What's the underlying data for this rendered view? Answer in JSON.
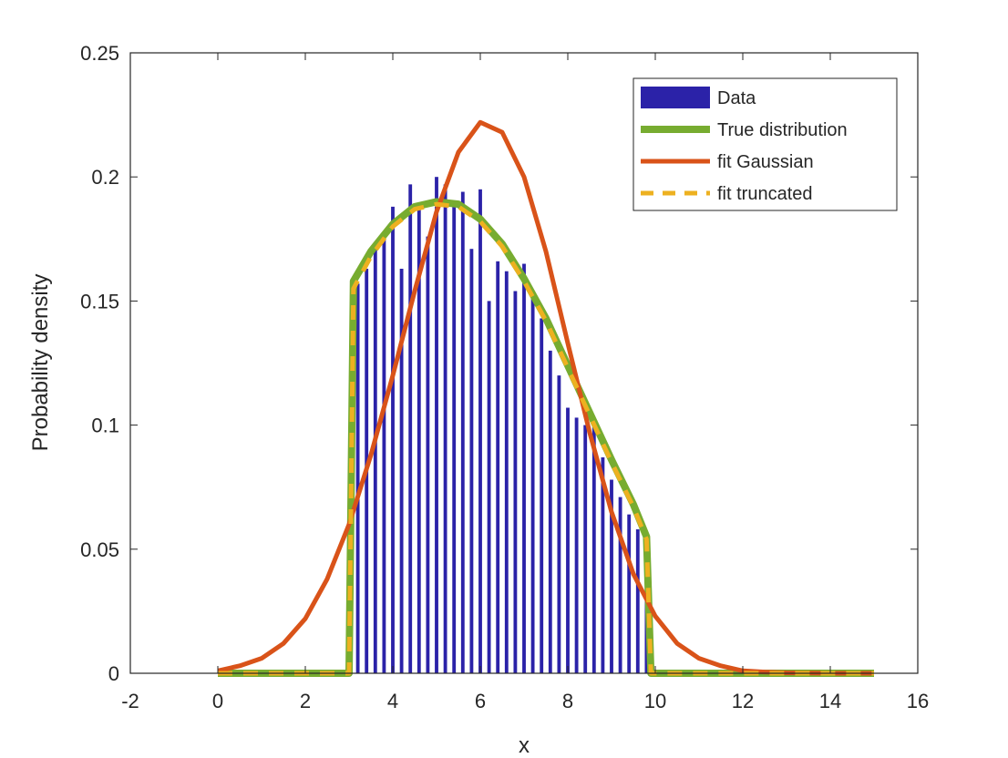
{
  "chart_data": {
    "type": "bar",
    "title": "",
    "xlabel": "x",
    "ylabel": "Probability density",
    "xlim": [
      -2,
      16
    ],
    "ylim": [
      0,
      0.25
    ],
    "xticks": [
      "-2",
      "0",
      "2",
      "4",
      "6",
      "8",
      "10",
      "12",
      "14",
      "16"
    ],
    "yticks": [
      "0",
      "0.05",
      "0.1",
      "0.15",
      "0.2",
      "0.25"
    ],
    "grid": false,
    "legend_position": "top-right",
    "bar_width": 0.08,
    "histogram": {
      "name": "Data",
      "color": "#2b22a8",
      "x": [
        3.2,
        3.4,
        3.6,
        3.8,
        4.0,
        4.2,
        4.4,
        4.6,
        4.8,
        5.0,
        5.2,
        5.4,
        5.6,
        5.8,
        6.0,
        6.2,
        6.4,
        6.6,
        6.8,
        7.0,
        7.2,
        7.4,
        7.6,
        7.8,
        8.0,
        8.2,
        8.4,
        8.6,
        8.8,
        9.0,
        9.2,
        9.4,
        9.6,
        9.8
      ],
      "y": [
        0.157,
        0.163,
        0.171,
        0.178,
        0.188,
        0.163,
        0.197,
        0.188,
        0.176,
        0.2,
        0.197,
        0.19,
        0.194,
        0.171,
        0.195,
        0.15,
        0.166,
        0.162,
        0.154,
        0.165,
        0.153,
        0.143,
        0.13,
        0.12,
        0.107,
        0.103,
        0.1,
        0.101,
        0.087,
        0.078,
        0.071,
        0.064,
        0.058,
        0.04
      ]
    },
    "series": [
      {
        "name": "True distribution",
        "color": "#77ac30",
        "style": "solid",
        "x": [
          0,
          3.0,
          3.1,
          3.5,
          4.0,
          4.5,
          5.0,
          5.5,
          6.0,
          6.5,
          7.0,
          7.5,
          8.0,
          8.5,
          9.0,
          9.5,
          9.8,
          9.9,
          10.0,
          15
        ],
        "y": [
          0,
          0,
          0.158,
          0.17,
          0.181,
          0.188,
          0.19,
          0.189,
          0.183,
          0.173,
          0.159,
          0.143,
          0.124,
          0.105,
          0.086,
          0.068,
          0.055,
          0,
          0,
          0
        ]
      },
      {
        "name": "fit Gaussian",
        "color": "#d95319",
        "style": "solid",
        "x": [
          0,
          0.5,
          1.0,
          1.5,
          2.0,
          2.5,
          3.0,
          3.5,
          4.0,
          4.5,
          5.0,
          5.5,
          6.0,
          6.5,
          7.0,
          7.5,
          8.0,
          8.5,
          9.0,
          9.5,
          10.0,
          10.5,
          11.0,
          11.5,
          12.0,
          12.5,
          13.0,
          13.5,
          14.0,
          15.0
        ],
        "y": [
          0.001,
          0.003,
          0.006,
          0.012,
          0.022,
          0.038,
          0.06,
          0.088,
          0.12,
          0.154,
          0.186,
          0.21,
          0.222,
          0.218,
          0.2,
          0.17,
          0.133,
          0.097,
          0.065,
          0.04,
          0.023,
          0.012,
          0.006,
          0.003,
          0.001,
          0.0005,
          0.0002,
          0.0001,
          0,
          0
        ]
      },
      {
        "name": "fit truncated",
        "color": "#edb120",
        "style": "dashed",
        "x": [
          0,
          3.0,
          3.1,
          3.5,
          4.0,
          4.5,
          5.0,
          5.5,
          6.0,
          6.5,
          7.0,
          7.5,
          8.0,
          8.5,
          9.0,
          9.5,
          9.8,
          9.9,
          10.0,
          15
        ],
        "y": [
          0,
          0,
          0.155,
          0.168,
          0.18,
          0.187,
          0.189,
          0.188,
          0.182,
          0.172,
          0.158,
          0.142,
          0.123,
          0.104,
          0.085,
          0.067,
          0.054,
          0,
          0,
          0
        ]
      }
    ]
  }
}
